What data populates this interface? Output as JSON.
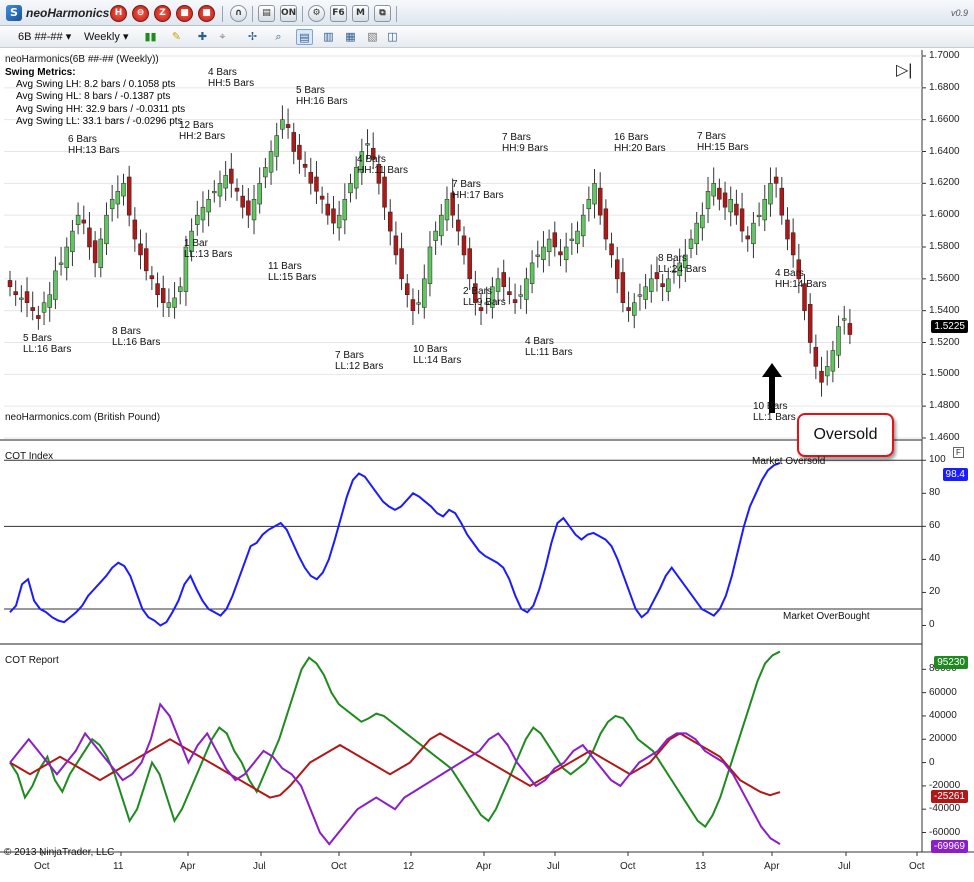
{
  "window": {
    "app_name": "neoHarmonics",
    "version": "v0.9",
    "title_buttons": [
      "H",
      "⊖",
      "Z",
      "■",
      "∩",
      "▤",
      "ON",
      "⚙",
      "F6",
      "M",
      "⧉"
    ]
  },
  "toolbar": {
    "instrument": "6B ##-##",
    "interval": "Weekly"
  },
  "chart": {
    "header": "neoHarmonics(6B ##-## (Weekly))",
    "watermark": "neoHarmonics.com (British Pound)",
    "copyright": "© 2013 NinjaTrader, LLC",
    "swing_metrics": {
      "title": "Swing Metrics:",
      "lines": [
        "Avg Swing LH: 8.2 bars / 0.1058 pts",
        "Avg Swing HL: 8 bars / -0.1387 pts",
        "Avg Swing HH: 32.9 bars / -0.0311 pts",
        "Avg Swing LL: 33.1 bars / -0.0296 pts"
      ]
    },
    "price_axis": [
      "1.7000",
      "1.6800",
      "1.6600",
      "1.6400",
      "1.6200",
      "1.6000",
      "1.5800",
      "1.5600",
      "1.5400",
      "1.5200",
      "1.5000",
      "1.4800",
      "1.4600"
    ],
    "last_price": "1.5225",
    "time_axis": [
      "Oct",
      "11",
      "Apr",
      "Jul",
      "Oct",
      "12",
      "Apr",
      "Jul",
      "Oct",
      "13",
      "Apr",
      "Jul",
      "Oct"
    ],
    "swing_labels": [
      {
        "a": "5 Bars",
        "b": "LL:16 Bars"
      },
      {
        "a": "6 Bars",
        "b": "HH:13 Bars"
      },
      {
        "a": "8 Bars",
        "b": "LL:16 Bars"
      },
      {
        "a": "1 Bar",
        "b": "LL:13 Bars"
      },
      {
        "a": "12 Bars",
        "b": "HH:2 Bars"
      },
      {
        "a": "4 Bars",
        "b": "HH:5 Bars"
      },
      {
        "a": "5 Bars",
        "b": "HH:16 Bars"
      },
      {
        "a": "11 Bars",
        "b": "LL:15 Bars"
      },
      {
        "a": "7 Bars",
        "b": "LL:12 Bars"
      },
      {
        "a": "4 Bars",
        "b": "HH:11 Bars"
      },
      {
        "a": "10 Bars",
        "b": "LL:14 Bars"
      },
      {
        "a": "2 Bars",
        "b": "LL:9 Bars"
      },
      {
        "a": "7 Bars",
        "b": "HH:17 Bars"
      },
      {
        "a": "7 Bars",
        "b": "HH:9 Bars"
      },
      {
        "a": "4 Bars",
        "b": "LL:11 Bars"
      },
      {
        "a": "16 Bars",
        "b": "HH:20 Bars"
      },
      {
        "a": "8 Bars",
        "b": "LL:24 Bars"
      },
      {
        "a": "7 Bars",
        "b": "HH:15 Bars"
      },
      {
        "a": "10 Bars",
        "b": "LL:1 Bars"
      },
      {
        "a": "4 Bars",
        "b": "HH:14 Bars"
      }
    ],
    "annotation": "Oversold"
  },
  "cot_index": {
    "title": "COT Index",
    "axis": [
      "100",
      "80",
      "60",
      "40",
      "20",
      "0"
    ],
    "last_value": "98.4",
    "label_oversold": "Market Oversold",
    "label_overbought": "Market OverBought",
    "color": "#1b1bff"
  },
  "cot_report": {
    "title": "COT Report",
    "axis": [
      "80000",
      "60000",
      "40000",
      "20000",
      "0",
      "-20000",
      "-40000",
      "-60000"
    ],
    "tags": [
      {
        "text": "95230",
        "color": "#1f8a1f"
      },
      {
        "text": "-25261",
        "color": "#b01818"
      },
      {
        "text": "-69969",
        "color": "#8a1fc8"
      }
    ]
  },
  "chart_data": [
    {
      "type": "candlestick",
      "title": "neoHarmonics(6B ##-## (Weekly))",
      "ylim": [
        1.46,
        1.7
      ],
      "last": 1.5225,
      "close_path": [
        1.555,
        1.55,
        1.548,
        1.545,
        1.54,
        1.535,
        1.545,
        1.55,
        1.565,
        1.57,
        1.58,
        1.59,
        1.6,
        1.595,
        1.58,
        1.57,
        1.585,
        1.6,
        1.61,
        1.615,
        1.62,
        1.6,
        1.585,
        1.575,
        1.565,
        1.56,
        1.55,
        1.545,
        1.545,
        1.548,
        1.555,
        1.58,
        1.59,
        1.6,
        1.605,
        1.61,
        1.615,
        1.62,
        1.625,
        1.62,
        1.615,
        1.605,
        1.6,
        1.61,
        1.62,
        1.63,
        1.64,
        1.65,
        1.66,
        1.655,
        1.64,
        1.635,
        1.63,
        1.62,
        1.615,
        1.61,
        1.6,
        1.595,
        1.6,
        1.61,
        1.62,
        1.63,
        1.64,
        1.645,
        1.635,
        1.62,
        1.605,
        1.59,
        1.575,
        1.56,
        1.55,
        1.54,
        1.545,
        1.56,
        1.58,
        1.59,
        1.6,
        1.61,
        1.6,
        1.59,
        1.575,
        1.56,
        1.545,
        1.54,
        1.545,
        1.555,
        1.56,
        1.555,
        1.55,
        1.545,
        1.55,
        1.56,
        1.57,
        1.575,
        1.58,
        1.585,
        1.58,
        1.575,
        1.58,
        1.585,
        1.59,
        1.6,
        1.61,
        1.62,
        1.6,
        1.585,
        1.575,
        1.56,
        1.545,
        1.54,
        1.545,
        1.55,
        1.555,
        1.56,
        1.56,
        1.555,
        1.56,
        1.565,
        1.57,
        1.575,
        1.585,
        1.595,
        1.6,
        1.615,
        1.62,
        1.61,
        1.605,
        1.61,
        1.6,
        1.59,
        1.585,
        1.595,
        1.6,
        1.61,
        1.62,
        1.62,
        1.6,
        1.585,
        1.575,
        1.56,
        1.54,
        1.52,
        1.505,
        1.495,
        1.505,
        1.515,
        1.53,
        1.535,
        1.525
      ]
    },
    {
      "type": "line",
      "title": "COT Index",
      "ylim": [
        -10,
        105
      ],
      "reference_lines": [
        100,
        60,
        10
      ],
      "series": [
        {
          "name": "COT Index",
          "values": [
            8,
            12,
            25,
            28,
            15,
            10,
            8,
            5,
            3,
            2,
            5,
            8,
            12,
            18,
            22,
            26,
            30,
            35,
            38,
            36,
            30,
            20,
            10,
            5,
            3,
            0,
            2,
            8,
            15,
            25,
            30,
            22,
            15,
            10,
            8,
            6,
            10,
            18,
            28,
            38,
            48,
            50,
            55,
            58,
            60,
            62,
            58,
            50,
            42,
            35,
            30,
            28,
            32,
            40,
            52,
            65,
            78,
            88,
            92,
            90,
            85,
            80,
            75,
            72,
            70,
            72,
            76,
            80,
            78,
            75,
            72,
            68,
            66,
            70,
            68,
            62,
            55,
            50,
            45,
            42,
            40,
            38,
            35,
            28,
            18,
            10,
            8,
            12,
            22,
            35,
            50,
            62,
            65,
            60,
            55,
            52,
            55,
            56,
            54,
            52,
            48,
            40,
            30,
            20,
            10,
            5,
            8,
            15,
            22,
            30,
            35,
            30,
            25,
            20,
            15,
            10,
            8,
            6,
            10,
            18,
            30,
            45,
            60,
            72,
            80,
            88,
            94,
            97,
            98.4
          ]
        }
      ]
    },
    {
      "type": "line",
      "title": "COT Report",
      "ylim": [
        -75000,
        100000
      ],
      "series": [
        {
          "values": [
            0,
            -10000,
            -30000,
            -20000,
            -5000,
            5000,
            -15000,
            -25000,
            -10000,
            0,
            10000,
            20000,
            15000,
            5000,
            -10000,
            -30000,
            -50000,
            -40000,
            -20000,
            0,
            -10000,
            -30000,
            -50000,
            -40000,
            -25000,
            -10000,
            5000,
            20000,
            30000,
            25000,
            10000,
            0,
            -15000,
            -25000,
            -10000,
            5000,
            20000,
            40000,
            60000,
            80000,
            90000,
            85000,
            75000,
            60000,
            50000,
            45000,
            40000,
            35000,
            38000,
            42000,
            40000,
            35000,
            30000,
            25000,
            20000,
            15000,
            10000,
            5000,
            0,
            -5000,
            -15000,
            -25000,
            -35000,
            -45000,
            -50000,
            -40000,
            -25000,
            -10000,
            5000,
            20000,
            30000,
            25000,
            15000,
            5000,
            -5000,
            -10000,
            -5000,
            0,
            10000,
            25000,
            35000,
            40000,
            38000,
            30000,
            20000,
            15000,
            10000,
            0,
            -10000,
            -20000,
            -30000,
            -40000,
            -50000,
            -55000,
            -45000,
            -30000,
            -10000,
            10000,
            30000,
            50000,
            70000,
            85000,
            92000,
            95230
          ]
        },
        {
          "values": [
            0,
            -5000,
            -10000,
            -5000,
            0,
            5000,
            0,
            -5000,
            -10000,
            -15000,
            -10000,
            -5000,
            0,
            5000,
            10000,
            15000,
            20000,
            15000,
            10000,
            5000,
            0,
            -5000,
            -10000,
            -15000,
            -20000,
            -25000,
            -30000,
            -28000,
            -20000,
            -10000,
            0,
            5000,
            10000,
            15000,
            10000,
            5000,
            0,
            -5000,
            -10000,
            -5000,
            0,
            10000,
            20000,
            25000,
            20000,
            15000,
            10000,
            5000,
            0,
            -5000,
            -10000,
            -15000,
            -20000,
            -15000,
            -10000,
            -5000,
            0,
            5000,
            10000,
            5000,
            0,
            -5000,
            -10000,
            -5000,
            0,
            10000,
            20000,
            25000,
            20000,
            15000,
            10000,
            5000,
            -5000,
            -15000,
            -20000,
            -25000,
            -28000,
            -25261
          ]
        },
        {
          "values": [
            0,
            10000,
            20000,
            10000,
            0,
            -10000,
            0,
            10000,
            25000,
            15000,
            5000,
            -5000,
            -15000,
            -10000,
            0,
            20000,
            50000,
            40000,
            20000,
            0,
            15000,
            25000,
            10000,
            -5000,
            -15000,
            -10000,
            0,
            10000,
            5000,
            -5000,
            -10000,
            -20000,
            -40000,
            -60000,
            -70000,
            -60000,
            -50000,
            -40000,
            -35000,
            -30000,
            -35000,
            -40000,
            -30000,
            -25000,
            -20000,
            -15000,
            -10000,
            -5000,
            0,
            5000,
            10000,
            20000,
            25000,
            15000,
            0,
            -10000,
            -20000,
            -15000,
            -5000,
            0,
            10000,
            15000,
            5000,
            -5000,
            -15000,
            -20000,
            -10000,
            0,
            5000,
            10000,
            20000,
            25000,
            25000,
            20000,
            10000,
            5000,
            0,
            -10000,
            -25000,
            -40000,
            -55000,
            -65000,
            -69969
          ]
        }
      ]
    }
  ]
}
